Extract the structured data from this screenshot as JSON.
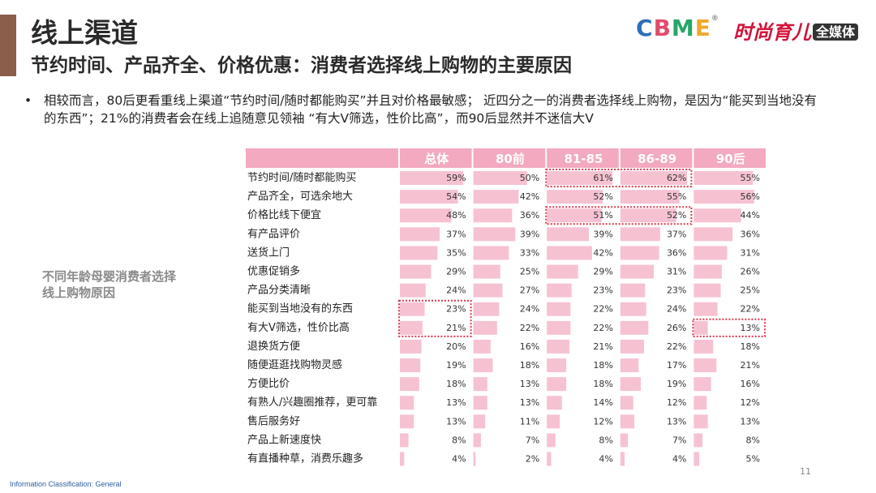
{
  "colors": {
    "accent_bar": "#8b5e4b",
    "header_bg": "#f3a9bf",
    "bar": "#f6c2d2",
    "highlight": "#d9394e",
    "logo_cbme": [
      "#2d6fb7",
      "#e24b6a",
      "#27a66a",
      "#f1a82c",
      "#7a4bb0"
    ]
  },
  "header": {
    "title": "线上渠道",
    "subtitle": "节约时间、产品齐全、价格优惠：消费者选择线上购物的主要原因"
  },
  "logos": {
    "cbme": "CBME",
    "shishang": "时尚育儿",
    "shishang_box": "全媒体"
  },
  "bullet": {
    "dot": "•",
    "text": "相较而言，80后更看重线上渠道“节约时间/随时都能购买”并且对价格最敏感；  近四分之一的消费者选择线上购物，是因为“能买到当地没有的东西”；21%的消费者会在线上追随意见领袖  “有大V筛选，性价比高”，而90后显然并不迷信大V"
  },
  "side_label": "不同年龄母婴消费者选择线上购物原因",
  "footer": {
    "info": "Information Classification: General",
    "page": "11"
  },
  "chart_data": {
    "type": "table",
    "columns": [
      "总体",
      "80前",
      "81-85",
      "86-89",
      "90后"
    ],
    "rows": [
      {
        "label": "节约时间/随时都能购买",
        "values": [
          59,
          50,
          61,
          62,
          55
        ]
      },
      {
        "label": "产品齐全，可选余地大",
        "values": [
          54,
          42,
          52,
          55,
          56
        ]
      },
      {
        "label": "价格比线下便宜",
        "values": [
          48,
          36,
          51,
          52,
          44
        ]
      },
      {
        "label": "有产品评价",
        "values": [
          37,
          39,
          39,
          37,
          36
        ]
      },
      {
        "label": "送货上门",
        "values": [
          35,
          33,
          42,
          36,
          31
        ]
      },
      {
        "label": "优惠促销多",
        "values": [
          29,
          25,
          29,
          31,
          26
        ]
      },
      {
        "label": "产品分类清晰",
        "values": [
          24,
          27,
          23,
          23,
          25
        ]
      },
      {
        "label": "能买到当地没有的东西",
        "values": [
          23,
          24,
          22,
          24,
          22
        ]
      },
      {
        "label": "有大V筛选，性价比高",
        "values": [
          21,
          22,
          22,
          26,
          13
        ]
      },
      {
        "label": "退换货方便",
        "values": [
          20,
          16,
          21,
          22,
          18
        ]
      },
      {
        "label": "随便逛逛找购物灵感",
        "values": [
          19,
          18,
          18,
          17,
          21
        ]
      },
      {
        "label": "方便比价",
        "values": [
          18,
          13,
          18,
          19,
          16
        ]
      },
      {
        "label": "有熟人/兴趣圈推荐，更可靠",
        "values": [
          13,
          13,
          14,
          12,
          12
        ]
      },
      {
        "label": "售后服务好",
        "values": [
          13,
          11,
          12,
          13,
          13
        ]
      },
      {
        "label": "产品上新速度快",
        "values": [
          8,
          7,
          8,
          7,
          8
        ]
      },
      {
        "label": "有直播种草，消费乐趣多",
        "values": [
          4,
          2,
          4,
          4,
          5
        ]
      }
    ],
    "value_suffix": "%",
    "highlight_boxes": [
      {
        "rows": [
          0
        ],
        "cols": [
          2,
          3
        ]
      },
      {
        "rows": [
          2
        ],
        "cols": [
          2,
          3
        ]
      },
      {
        "rows": [
          7,
          8
        ],
        "cols": [
          0
        ]
      },
      {
        "rows": [
          8
        ],
        "cols": [
          4
        ]
      }
    ]
  }
}
